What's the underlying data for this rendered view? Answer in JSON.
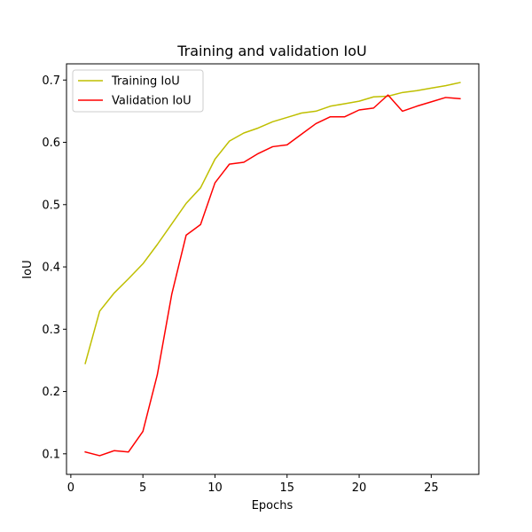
{
  "chart_data": {
    "type": "line",
    "title": "Training and validation IoU",
    "xlabel": "Epochs",
    "ylabel": "IoU",
    "xlim": [
      -0.3,
      28.3
    ],
    "ylim": [
      0.067,
      0.726
    ],
    "xticks": [
      0,
      5,
      10,
      15,
      20,
      25
    ],
    "yticks": [
      0.1,
      0.2,
      0.3,
      0.4,
      0.5,
      0.6,
      0.7
    ],
    "legend_position": "top-left",
    "grid": false,
    "x": [
      1,
      2,
      3,
      4,
      5,
      6,
      7,
      8,
      9,
      10,
      11,
      12,
      13,
      14,
      15,
      16,
      17,
      18,
      19,
      20,
      21,
      22,
      23,
      24,
      25,
      26,
      27
    ],
    "series": [
      {
        "name": "Training IoU",
        "color": "#bfbf00",
        "values": [
          0.245,
          0.329,
          0.358,
          0.381,
          0.405,
          0.436,
          0.469,
          0.502,
          0.527,
          0.573,
          0.602,
          0.615,
          0.623,
          0.633,
          0.64,
          0.647,
          0.65,
          0.658,
          0.662,
          0.666,
          0.673,
          0.674,
          0.68,
          0.683,
          0.687,
          0.691,
          0.696
        ]
      },
      {
        "name": "Validation IoU",
        "color": "#ff0000",
        "values": [
          0.103,
          0.097,
          0.105,
          0.103,
          0.136,
          0.227,
          0.356,
          0.451,
          0.468,
          0.535,
          0.565,
          0.568,
          0.582,
          0.593,
          0.596,
          0.613,
          0.63,
          0.641,
          0.641,
          0.652,
          0.655,
          0.676,
          0.65,
          0.658,
          0.665,
          0.672,
          0.67
        ]
      }
    ]
  }
}
